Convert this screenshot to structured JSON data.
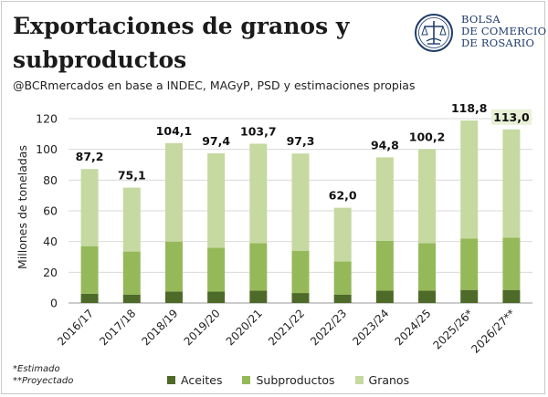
{
  "header": {
    "title": "Exportaciones de granos y subproductos",
    "subtitle": "@BCRmercados en base a INDEC, MAGyP, PSD y estimaciones propias"
  },
  "logo": {
    "line1": "BOLSA",
    "line2": "DE COMERCIO",
    "line3": "DE ROSARIO",
    "icon": "bcr-emblem-icon",
    "color": "#1f3b6b"
  },
  "notes": {
    "estimated": "*Estimado",
    "projected": "**Proyectado"
  },
  "chart_data": {
    "type": "bar",
    "stacked": true,
    "ylabel": "Millones de toneladas",
    "ylim": [
      0,
      120
    ],
    "yticks": [
      "0",
      "20",
      "40",
      "60",
      "80",
      "100",
      "120"
    ],
    "grid": true,
    "legend_position": "bottom",
    "categories": [
      "2016/17",
      "2017/18",
      "2018/19",
      "2019/20",
      "2020/21",
      "2021/22",
      "2022/23",
      "2023/24",
      "2024/25",
      "2025/26*",
      "2026/27**"
    ],
    "series": [
      {
        "name": "Aceites",
        "color": "#4e6a28",
        "values": [
          6.0,
          5.5,
          7.5,
          7.5,
          8.0,
          6.5,
          5.5,
          8.0,
          8.0,
          8.5,
          8.5
        ]
      },
      {
        "name": "Subproductos",
        "color": "#95b959",
        "values": [
          31.0,
          28.0,
          32.5,
          28.5,
          31.0,
          27.5,
          21.5,
          32.5,
          31.0,
          33.5,
          34.0
        ]
      },
      {
        "name": "Granos",
        "color": "#c5d9a0",
        "values": [
          50.2,
          41.6,
          64.1,
          61.4,
          64.7,
          63.3,
          35.0,
          54.3,
          61.2,
          76.8,
          70.5
        ]
      }
    ],
    "totals": [
      "87,2",
      "75,1",
      "104,1",
      "97,4",
      "103,7",
      "97,3",
      "62,0",
      "94,8",
      "100,2",
      "118,8",
      "113,0"
    ],
    "highlight_label_color": "#e8f0d6"
  }
}
